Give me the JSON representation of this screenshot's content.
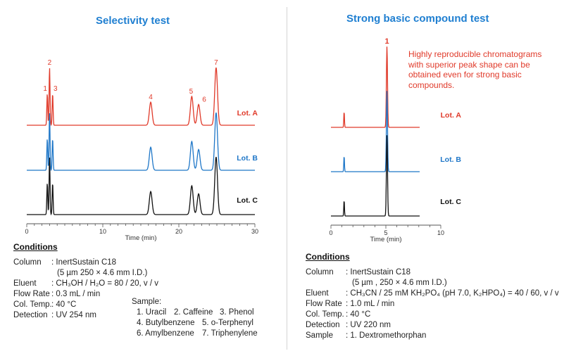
{
  "colors": {
    "lot_a": "#e03a2a",
    "lot_b": "#1f77c8",
    "lot_c": "#111111",
    "title": "#1f7fd1"
  },
  "chart_data": [
    {
      "type": "line",
      "title": "Selectivity test",
      "xlabel": "Time (min)",
      "xlim": [
        0,
        30
      ],
      "x_ticks": [
        0,
        10,
        20,
        30
      ],
      "series_labels": [
        "Lot. A",
        "Lot. B",
        "Lot. C"
      ],
      "peaks": [
        {
          "label": "1",
          "rt": 2.7,
          "height": 0.55
        },
        {
          "label": "2",
          "rt": 3.0,
          "height": 1.0
        },
        {
          "label": "3",
          "rt": 3.4,
          "height": 0.55
        },
        {
          "label": "4",
          "rt": 16.3,
          "height": 0.4
        },
        {
          "label": "5",
          "rt": 21.7,
          "height": 0.5
        },
        {
          "label": "6",
          "rt": 22.6,
          "height": 0.36
        },
        {
          "label": "7",
          "rt": 24.9,
          "height": 1.0
        }
      ]
    },
    {
      "type": "line",
      "title": "Strong basic compound test",
      "xlabel": "Time (min)",
      "xlim": [
        0,
        10
      ],
      "x_ticks": [
        0,
        5,
        10
      ],
      "series_labels": [
        "Lot. A",
        "Lot. B",
        "Lot. C"
      ],
      "peaks": [
        {
          "label": "",
          "rt": 1.2,
          "height": 0.2
        },
        {
          "label": "1",
          "rt": 5.1,
          "height": 1.0
        }
      ]
    }
  ],
  "left": {
    "title": "Selectivity test",
    "conditions_heading": "Conditions",
    "column_label": "Column",
    "column_value": ": InertSustain C18",
    "column_value2": "(5 µm  250 × 4.6 mm I.D.)",
    "eluent_label": "Eluent",
    "eluent_value": ": CH₃OH / H₂O = 80 / 20, v / v",
    "flow_label": "Flow Rate",
    "flow_value": ": 0.3 mL / min",
    "temp_label": "Col. Temp.",
    "temp_value": ": 40 °C",
    "detection_label": "Detection",
    "detection_value": ": UV 254 nm",
    "sample_heading": "Sample:",
    "samples": [
      "1. Uracil",
      "2. Caffeine",
      "3. Phenol",
      "4. Butylbenzene",
      "5. o-Terphenyl",
      "6. Amylbenzene",
      "7. Triphenylene"
    ]
  },
  "right": {
    "title": "Strong basic compound test",
    "note": "Highly reproducible chromatograms with superior peak shape can be obtained even for strong basic compounds.",
    "conditions_heading": "Conditions",
    "column_label": "Column",
    "column_value": ": InertSustain C18",
    "column_value2": "(5 µm , 250 × 4.6 mm I.D.)",
    "eluent_label": "Eluent",
    "eluent_value": ": CH₃CN / 25 mM KH₂PO₄ (pH 7.0, K₂HPO₄) = 40 / 60, v / v",
    "flow_label": "Flow Rate",
    "flow_value": ": 1.0 mL / min",
    "temp_label": "Col. Temp.",
    "temp_value": ": 40 °C",
    "detection_label": "Detection",
    "detection_value": ": UV 220 nm",
    "sample_label": "Sample",
    "sample_value": ": 1. Dextromethorphan"
  }
}
